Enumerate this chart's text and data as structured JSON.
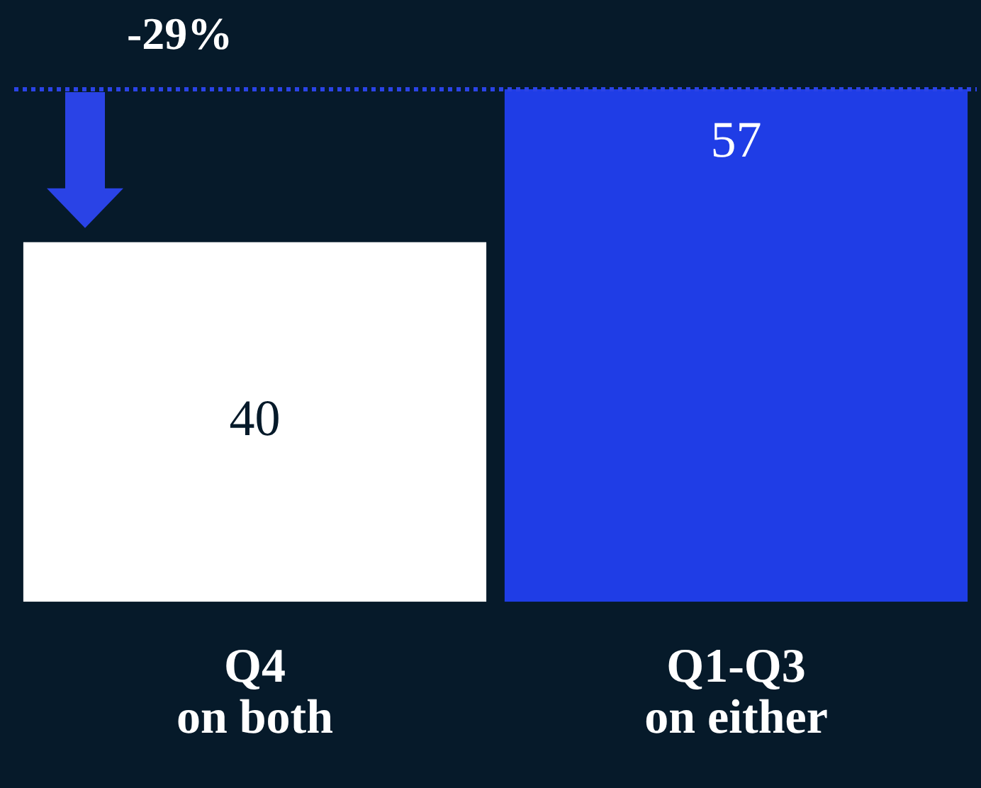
{
  "chart_data": {
    "type": "bar",
    "categories": [
      "Q4\non both",
      "Q1-Q3\non either"
    ],
    "values": [
      40,
      57
    ],
    "colors": [
      "#ffffff",
      "#1f3de6"
    ],
    "data_labels": true,
    "ref_lines": [
      {
        "axis": "y",
        "value": 57,
        "color": "#2a43e6",
        "line_style": "dotted"
      }
    ],
    "annotations": [
      "-29%"
    ],
    "tick_labels": "x"
  }
}
